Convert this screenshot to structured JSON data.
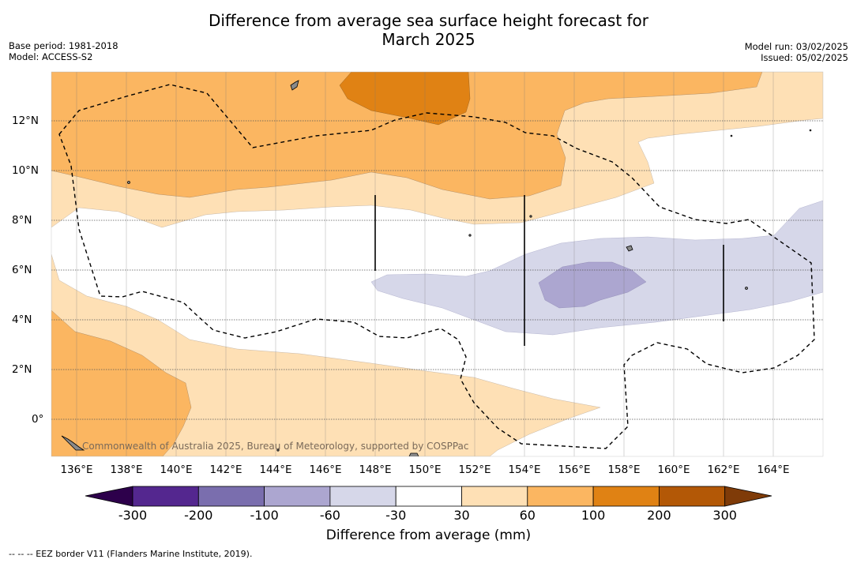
{
  "title_line1": "Difference from average sea surface height forecast for",
  "title_line2": "March 2025",
  "base_period": "Base period: 1981-2018",
  "model": "Model: ACCESS-S2",
  "model_run": "Model run: 03/02/2025",
  "issued": "Issued: 05/02/2025",
  "credit": "Commonwealth of Australia 2025, Bureau of Meteorology, supported by COSPPac",
  "x_axis_labels": [
    "136°E",
    "138°E",
    "140°E",
    "142°E",
    "144°E",
    "146°E",
    "148°E",
    "150°E",
    "152°E",
    "154°E",
    "156°E",
    "158°E",
    "160°E",
    "162°E",
    "164°E"
  ],
  "y_axis_labels": [
    "12°N",
    "10°N",
    "8°N",
    "6°N",
    "4°N",
    "2°N",
    "0°"
  ],
  "colorbar": {
    "title": "Difference from average (mm)",
    "tick_labels": [
      "-300",
      "-200",
      "-100",
      "-60",
      "-30",
      "30",
      "60",
      "100",
      "200",
      "300"
    ],
    "colors": [
      "#54278f",
      "#7a6eae",
      "#aca6d0",
      "#d6d7e9",
      "#ffffff",
      "#fee0b5",
      "#fbb661",
      "#e08214",
      "#b35806"
    ],
    "low_extend_color": "#2d004b",
    "high_extend_color": "#7f3b08"
  },
  "footer": "--  --  -- EEZ border V11 (Flanders Marine Institute, 2019)."
}
